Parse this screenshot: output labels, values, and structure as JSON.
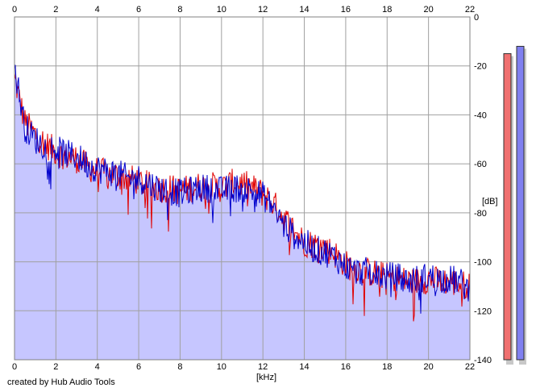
{
  "chart_data": {
    "type": "area",
    "title": "",
    "xlabel": "[kHz]",
    "ylabel": "[dB]",
    "xlim": [
      0,
      22
    ],
    "ylim": [
      -140,
      0
    ],
    "x_ticks": [
      "0",
      "2",
      "4",
      "6",
      "8",
      "10",
      "12",
      "14",
      "16",
      "18",
      "20",
      "22"
    ],
    "y_ticks": [
      "0",
      "-20",
      "-40",
      "-60",
      "-80",
      "-100",
      "-120",
      "-140"
    ],
    "grid": true,
    "series": [
      {
        "color": "#e00000",
        "x": [
          0.0,
          0.5,
          1.0,
          1.5,
          2.0,
          2.5,
          3.0,
          3.5,
          4.0,
          4.5,
          5.0,
          5.5,
          6.0,
          6.5,
          7.0,
          7.5,
          8.0,
          8.5,
          9.0,
          9.5,
          10.0,
          10.5,
          11.0,
          11.5,
          12.0,
          12.5,
          13.0,
          13.5,
          14.0,
          14.5,
          15.0,
          15.5,
          16.0,
          16.5,
          17.0,
          17.5,
          18.0,
          18.5,
          19.0,
          19.5,
          20.0,
          20.5,
          21.0,
          21.5,
          22.0
        ],
        "values": [
          -25,
          -43,
          -48,
          -52,
          -55,
          -57,
          -58,
          -61,
          -63,
          -64,
          -65,
          -66,
          -67,
          -69,
          -70,
          -70,
          -71,
          -70,
          -69,
          -69,
          -70,
          -68,
          -68,
          -70,
          -72,
          -76,
          -82,
          -87,
          -92,
          -93,
          -94,
          -97,
          -101,
          -103,
          -104,
          -105,
          -106,
          -107,
          -108,
          -108,
          -107,
          -108,
          -108,
          -109,
          -110
        ]
      },
      {
        "color": "#0000cc",
        "x": [
          0.0,
          0.5,
          1.0,
          1.5,
          2.0,
          2.5,
          3.0,
          3.5,
          4.0,
          4.5,
          5.0,
          5.5,
          6.0,
          6.5,
          7.0,
          7.5,
          8.0,
          8.5,
          9.0,
          9.5,
          10.0,
          10.5,
          11.0,
          11.5,
          12.0,
          12.5,
          13.0,
          13.5,
          14.0,
          14.5,
          15.0,
          15.5,
          16.0,
          16.5,
          17.0,
          17.5,
          18.0,
          18.5,
          19.0,
          19.5,
          20.0,
          20.5,
          21.0,
          21.5,
          22.0
        ],
        "values": [
          -20,
          -45,
          -50,
          -53,
          -54,
          -56,
          -57,
          -60,
          -62,
          -63,
          -64,
          -66,
          -66,
          -68,
          -70,
          -71,
          -72,
          -71,
          -70,
          -70,
          -71,
          -70,
          -70,
          -71,
          -73,
          -78,
          -85,
          -89,
          -92,
          -95,
          -96,
          -98,
          -102,
          -104,
          -104,
          -105,
          -106,
          -106,
          -108,
          -107,
          -106,
          -107,
          -107,
          -108,
          -112
        ]
      }
    ],
    "level_meters": [
      {
        "color": "#f07070",
        "level_db": -15
      },
      {
        "color": "#8080f0",
        "level_db": -12
      }
    ],
    "fill_color": "#c6c6ff"
  },
  "credit": "created by Hub Audio Tools"
}
